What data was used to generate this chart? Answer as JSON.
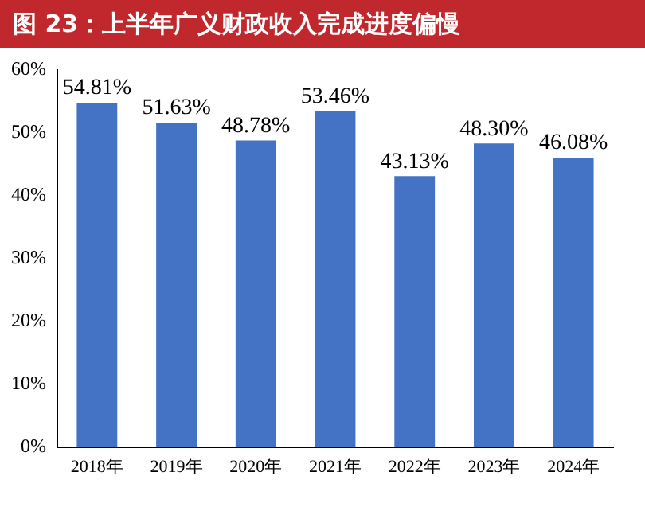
{
  "chart_data": {
    "type": "bar",
    "title": "图 23：上半年广义财政收入完成进度偏慢",
    "categories": [
      "2018年",
      "2019年",
      "2020年",
      "2021年",
      "2022年",
      "2023年",
      "2024年"
    ],
    "values": [
      54.81,
      51.63,
      48.78,
      53.46,
      43.13,
      48.3,
      46.08
    ],
    "value_labels": [
      "54.81%",
      "51.63%",
      "48.78%",
      "53.46%",
      "43.13%",
      "48.30%",
      "46.08%"
    ],
    "color": "#4472c4",
    "ylim": [
      0,
      60
    ],
    "yticks": [
      {
        "value": 0,
        "label": "0%"
      },
      {
        "value": 10,
        "label": "10%"
      },
      {
        "value": 20,
        "label": "20%"
      },
      {
        "value": 30,
        "label": "30%"
      },
      {
        "value": 40,
        "label": "40%"
      },
      {
        "value": 50,
        "label": "50%"
      },
      {
        "value": 60,
        "label": "60%"
      }
    ],
    "grid": false,
    "legend": false
  }
}
